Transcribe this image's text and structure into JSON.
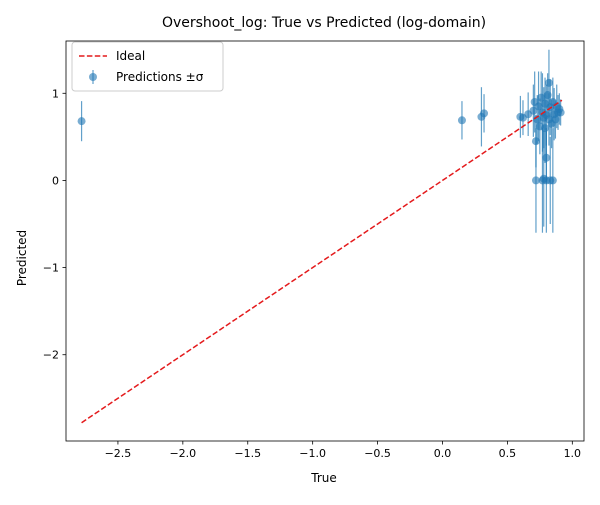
{
  "chart_data": {
    "type": "scatter",
    "title": "Overshoot_log: True vs Predicted (log-domain)",
    "xlabel": "True",
    "ylabel": "Predicted",
    "xlim": [
      -2.9,
      1.09
    ],
    "ylim": [
      -2.99,
      1.6
    ],
    "xticks": [
      {
        "value": -2.5,
        "label": "−2.5"
      },
      {
        "value": -2.0,
        "label": "−2.0"
      },
      {
        "value": -1.5,
        "label": "−1.5"
      },
      {
        "value": -1.0,
        "label": "−1.0"
      },
      {
        "value": -0.5,
        "label": "−0.5"
      },
      {
        "value": 0.0,
        "label": "0.0"
      },
      {
        "value": 0.5,
        "label": "0.5"
      },
      {
        "value": 1.0,
        "label": "1.0"
      }
    ],
    "yticks": [
      {
        "value": -2,
        "label": "−2"
      },
      {
        "value": -1,
        "label": "−1"
      },
      {
        "value": 0,
        "label": "0"
      },
      {
        "value": 1,
        "label": "1"
      }
    ],
    "grid": false,
    "legend": {
      "placement": "upper-left",
      "entries": [
        {
          "label": "Ideal",
          "style": "dashed-line",
          "color": "#e41a1c"
        },
        {
          "label": "Predictions ±σ",
          "style": "errorbar-marker",
          "color": "#1f77b4"
        }
      ]
    },
    "series": [
      {
        "name": "Ideal",
        "kind": "line",
        "color": "#e41a1c",
        "x": [
          -2.78,
          0.92
        ],
        "y": [
          -2.78,
          0.92
        ]
      },
      {
        "name": "Predictions ±σ",
        "kind": "errorbar",
        "color": "#1f77b4",
        "points": [
          {
            "x": -2.78,
            "y": 0.68,
            "err": 0.23
          },
          {
            "x": 0.15,
            "y": 0.69,
            "err": 0.22
          },
          {
            "x": 0.3,
            "y": 0.73,
            "err": 0.34
          },
          {
            "x": 0.32,
            "y": 0.77,
            "err": 0.22
          },
          {
            "x": 0.6,
            "y": 0.73,
            "err": 0.24
          },
          {
            "x": 0.62,
            "y": 0.72,
            "err": 0.2
          },
          {
            "x": 0.66,
            "y": 0.76,
            "err": 0.25
          },
          {
            "x": 0.7,
            "y": 0.8,
            "err": 0.3
          },
          {
            "x": 0.71,
            "y": 0.9,
            "err": 0.35
          },
          {
            "x": 0.72,
            "y": 0.45,
            "err": 0.3
          },
          {
            "x": 0.72,
            "y": 0.0,
            "err": 0.6
          },
          {
            "x": 0.73,
            "y": 0.7,
            "err": 0.28
          },
          {
            "x": 0.74,
            "y": 0.85,
            "err": 0.4
          },
          {
            "x": 0.75,
            "y": 0.62,
            "err": 0.32
          },
          {
            "x": 0.76,
            "y": 0.95,
            "err": 0.3
          },
          {
            "x": 0.77,
            "y": 0.78,
            "err": 0.45
          },
          {
            "x": 0.77,
            "y": 0.0,
            "err": 0.6
          },
          {
            "x": 0.78,
            "y": 0.72,
            "err": 0.35
          },
          {
            "x": 0.78,
            "y": 0.02,
            "err": 0.55
          },
          {
            "x": 0.79,
            "y": 0.88,
            "err": 0.3
          },
          {
            "x": 0.79,
            "y": 0.6,
            "err": 0.4
          },
          {
            "x": 0.8,
            "y": 0.26,
            "err": 0.3
          },
          {
            "x": 0.8,
            "y": 0.75,
            "err": 0.35
          },
          {
            "x": 0.8,
            "y": 0.0,
            "err": 0.6
          },
          {
            "x": 0.81,
            "y": 0.98,
            "err": 0.25
          },
          {
            "x": 0.82,
            "y": 1.12,
            "err": 0.38
          },
          {
            "x": 0.82,
            "y": 0.7,
            "err": 0.3
          },
          {
            "x": 0.83,
            "y": 0.84,
            "err": 0.32
          },
          {
            "x": 0.83,
            "y": 0.0,
            "err": 0.5
          },
          {
            "x": 0.84,
            "y": 0.65,
            "err": 0.28
          },
          {
            "x": 0.85,
            "y": 0.9,
            "err": 0.28
          },
          {
            "x": 0.85,
            "y": 0.0,
            "err": 0.6
          },
          {
            "x": 0.86,
            "y": 0.76,
            "err": 0.3
          },
          {
            "x": 0.87,
            "y": 0.7,
            "err": 0.22
          },
          {
            "x": 0.88,
            "y": 0.85,
            "err": 0.25
          },
          {
            "x": 0.89,
            "y": 0.78,
            "err": 0.2
          },
          {
            "x": 0.9,
            "y": 0.82,
            "err": 0.18
          },
          {
            "x": 0.91,
            "y": 0.78,
            "err": 0.15
          }
        ]
      }
    ]
  }
}
